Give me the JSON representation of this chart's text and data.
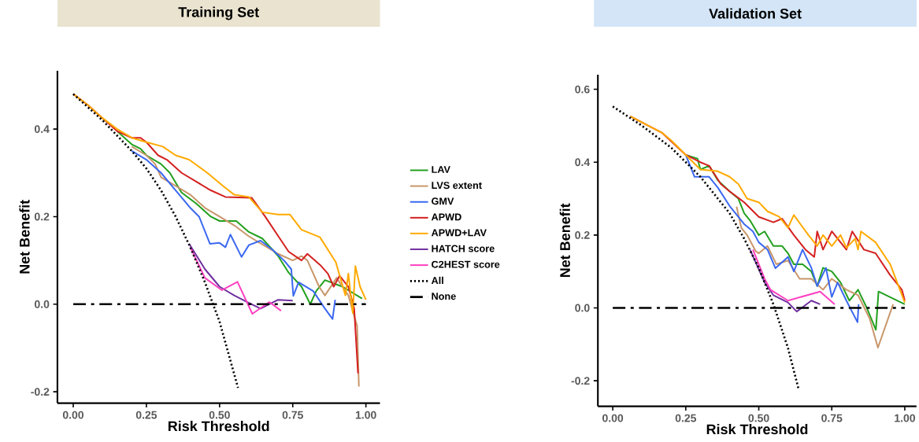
{
  "chart_data": [
    {
      "type": "line",
      "title": "Training Set",
      "xlabel": "Risk Threshold",
      "ylabel": "Net Benefit",
      "xlim": [
        -0.054,
        1.048
      ],
      "ylim": [
        -0.226,
        0.533
      ],
      "xticks": [
        {
          "value": 0,
          "label": "0.00"
        },
        {
          "value": 0.25,
          "label": "0.25"
        },
        {
          "value": 0.5,
          "label": "0.50"
        },
        {
          "value": 0.75,
          "label": "0.75"
        },
        {
          "value": 1,
          "label": "1.00"
        }
      ],
      "yticks": [
        {
          "value": -0.2,
          "label": "-0.2"
        },
        {
          "value": 0,
          "label": "0.0"
        },
        {
          "value": 0.2,
          "label": "0.2"
        },
        {
          "value": 0.4,
          "label": "0.4"
        }
      ],
      "legend": "right",
      "marker": "none",
      "series": [
        {
          "name": "LAV",
          "color": "#22a01e",
          "x": [
            0.15,
            0.2,
            0.23,
            0.25,
            0.3,
            0.33,
            0.37,
            0.42,
            0.47,
            0.5,
            0.557,
            0.6,
            0.646,
            0.7,
            0.736,
            0.78,
            0.81,
            0.83,
            0.86,
            0.9,
            0.92,
            0.987
          ],
          "values": [
            0.395,
            0.365,
            0.355,
            0.34,
            0.32,
            0.3,
            0.255,
            0.23,
            0.2,
            0.19,
            0.19,
            0.165,
            0.15,
            0.11,
            0.072,
            0.04,
            0.0,
            0.03,
            0.055,
            0.045,
            0.04,
            0.013
          ]
        },
        {
          "name": "LVS extent",
          "color": "#c8966a",
          "x": [
            0.2,
            0.25,
            0.28,
            0.3,
            0.35,
            0.4,
            0.45,
            0.5,
            0.55,
            0.6,
            0.65,
            0.7,
            0.75,
            0.78,
            0.8,
            0.84,
            0.86,
            0.9,
            0.94,
            0.97,
            0.976
          ],
          "values": [
            0.36,
            0.34,
            0.32,
            0.29,
            0.27,
            0.25,
            0.22,
            0.2,
            0.18,
            0.155,
            0.135,
            0.115,
            0.1,
            0.11,
            0.1,
            0.04,
            0.02,
            0.06,
            0.02,
            -0.05,
            -0.188
          ]
        },
        {
          "name": "GMV",
          "color": "#3b68f0",
          "x": [
            0.2,
            0.25,
            0.3,
            0.35,
            0.4,
            0.43,
            0.467,
            0.5,
            0.52,
            0.537,
            0.575,
            0.6,
            0.64,
            0.68,
            0.72,
            0.745,
            0.752,
            0.77,
            0.82,
            0.86,
            0.886,
            0.895
          ],
          "values": [
            0.35,
            0.33,
            0.3,
            0.26,
            0.22,
            0.2,
            0.138,
            0.14,
            0.13,
            0.159,
            0.108,
            0.135,
            0.145,
            0.125,
            0.1,
            0.08,
            0.019,
            0.05,
            0.03,
            -0.01,
            -0.034,
            0.01
          ]
        },
        {
          "name": "APWD",
          "color": "#d42020",
          "x": [
            0,
            0.05,
            0.1,
            0.15,
            0.2,
            0.23,
            0.25,
            0.29,
            0.32,
            0.37,
            0.42,
            0.47,
            0.52,
            0.61,
            0.655,
            0.7,
            0.736,
            0.78,
            0.8,
            0.843,
            0.87,
            0.89,
            0.91,
            0.94,
            0.96,
            0.973
          ],
          "values": [
            0.48,
            0.455,
            0.425,
            0.395,
            0.38,
            0.38,
            0.37,
            0.34,
            0.33,
            0.3,
            0.28,
            0.26,
            0.245,
            0.243,
            0.201,
            0.156,
            0.12,
            0.1,
            0.115,
            0.09,
            0.07,
            0.04,
            0.065,
            0.04,
            -0.01,
            -0.158
          ]
        },
        {
          "name": "APWD+LAV",
          "color": "#ffaa00",
          "x": [
            0,
            0.05,
            0.1,
            0.15,
            0.2,
            0.25,
            0.306,
            0.35,
            0.396,
            0.458,
            0.512,
            0.55,
            0.6,
            0.646,
            0.7,
            0.74,
            0.78,
            0.843,
            0.897,
            0.93,
            0.94,
            0.955,
            0.964,
            0.98,
            1.0
          ],
          "values": [
            0.48,
            0.455,
            0.425,
            0.4,
            0.38,
            0.37,
            0.36,
            0.34,
            0.33,
            0.3,
            0.27,
            0.25,
            0.245,
            0.21,
            0.205,
            0.205,
            0.17,
            0.153,
            0.096,
            0.02,
            0.07,
            -0.02,
            0.087,
            0.04,
            0.01
          ]
        },
        {
          "name": "HATCH score",
          "color": "#7030a0",
          "x": [
            0.396,
            0.45,
            0.5,
            0.55,
            0.6,
            0.64,
            0.7,
            0.75
          ],
          "values": [
            0.138,
            0.08,
            0.04,
            0.02,
            0.003,
            -0.01,
            0.01,
            0.008
          ]
        },
        {
          "name": "C2HEST score",
          "color": "#ff40c0",
          "x": [
            0.4,
            0.45,
            0.508,
            0.561,
            0.612,
            0.67,
            0.71
          ],
          "values": [
            0.13,
            0.06,
            0.032,
            0.051,
            -0.022,
            0.005,
            -0.015
          ]
        },
        {
          "name": "All",
          "color": "#000000",
          "line_style": "dotted",
          "x": [
            0,
            0.1,
            0.2,
            0.25,
            0.3,
            0.35,
            0.4,
            0.45,
            0.5,
            0.563
          ],
          "values": [
            0.48,
            0.42,
            0.35,
            0.31,
            0.26,
            0.2,
            0.13,
            0.05,
            -0.04,
            -0.191
          ]
        },
        {
          "name": "None",
          "color": "#000000",
          "line_style": "dashdot",
          "x": [
            0,
            1
          ],
          "values": [
            0,
            0
          ]
        }
      ]
    },
    {
      "type": "line",
      "title": "Validation Set",
      "xlabel": "Risk Threshold",
      "ylabel": "Net Benefit",
      "xlim": [
        -0.051,
        1.04
      ],
      "ylim": [
        -0.27,
        0.64
      ],
      "xticks": [
        {
          "value": 0,
          "label": "0.00"
        },
        {
          "value": 0.25,
          "label": "0.25"
        },
        {
          "value": 0.5,
          "label": "0.50"
        },
        {
          "value": 0.75,
          "label": "0.75"
        },
        {
          "value": 1,
          "label": "1.00"
        }
      ],
      "yticks": [
        {
          "value": -0.2,
          "label": "-0.2"
        },
        {
          "value": 0,
          "label": "0.0"
        },
        {
          "value": 0.2,
          "label": "0.2"
        },
        {
          "value": 0.4,
          "label": "0.4"
        },
        {
          "value": 0.6,
          "label": "0.6"
        }
      ],
      "marker": "none",
      "series": [
        {
          "color": "#22a01e",
          "x": [
            0.25,
            0.29,
            0.3,
            0.33,
            0.36,
            0.4,
            0.43,
            0.45,
            0.47,
            0.5,
            0.52,
            0.55,
            0.58,
            0.6,
            0.62,
            0.65,
            0.68,
            0.7,
            0.72,
            0.75,
            0.78,
            0.81,
            0.84,
            0.87,
            0.901,
            0.91,
            1.0
          ],
          "values": [
            0.42,
            0.41,
            0.38,
            0.39,
            0.35,
            0.32,
            0.3,
            0.26,
            0.24,
            0.2,
            0.21,
            0.17,
            0.17,
            0.15,
            0.12,
            0.12,
            0.1,
            0.06,
            0.11,
            0.1,
            0.07,
            0.02,
            0.05,
            0.0,
            -0.06,
            0.045,
            0.01
          ]
        },
        {
          "color": "#c8966a",
          "x": [
            0.424,
            0.44,
            0.46,
            0.49,
            0.5,
            0.53,
            0.56,
            0.6,
            0.64,
            0.68,
            0.72,
            0.75,
            0.8,
            0.84,
            0.88,
            0.908,
            0.96
          ],
          "values": [
            0.278,
            0.22,
            0.2,
            0.155,
            0.15,
            0.17,
            0.12,
            0.13,
            0.08,
            0.08,
            0.05,
            0.08,
            0.05,
            0.035,
            -0.03,
            -0.109,
            0.01
          ]
        },
        {
          "color": "#3b68f0",
          "x": [
            0.25,
            0.28,
            0.33,
            0.36,
            0.4,
            0.45,
            0.48,
            0.5,
            0.53,
            0.557,
            0.6,
            0.62,
            0.65,
            0.68,
            0.7,
            0.73,
            0.75,
            0.77,
            0.8,
            0.838,
            0.842
          ],
          "values": [
            0.42,
            0.36,
            0.36,
            0.33,
            0.28,
            0.23,
            0.21,
            0.18,
            0.16,
            0.109,
            0.14,
            0.1,
            0.16,
            0.11,
            0.06,
            0.11,
            0.03,
            0.07,
            0.02,
            -0.039,
            0.01
          ]
        },
        {
          "color": "#d42020",
          "x": [
            0.06,
            0.17,
            0.25,
            0.3,
            0.33,
            0.37,
            0.4,
            0.45,
            0.5,
            0.55,
            0.58,
            0.62,
            0.66,
            0.69,
            0.7,
            0.72,
            0.75,
            0.8,
            0.82,
            0.86,
            0.9,
            0.95,
            0.99,
            1.0
          ],
          "values": [
            0.526,
            0.48,
            0.42,
            0.4,
            0.39,
            0.34,
            0.32,
            0.29,
            0.25,
            0.235,
            0.245,
            0.2,
            0.16,
            0.14,
            0.21,
            0.16,
            0.21,
            0.16,
            0.21,
            0.16,
            0.15,
            0.09,
            0.05,
            0.02
          ]
        },
        {
          "color": "#ffaa00",
          "x": [
            0.06,
            0.17,
            0.2,
            0.25,
            0.3,
            0.36,
            0.4,
            0.43,
            0.46,
            0.5,
            0.53,
            0.57,
            0.6,
            0.62,
            0.67,
            0.7,
            0.72,
            0.75,
            0.78,
            0.8,
            0.83,
            0.84,
            0.85,
            0.9,
            0.95,
            1.0
          ],
          "values": [
            0.526,
            0.48,
            0.46,
            0.42,
            0.38,
            0.375,
            0.36,
            0.34,
            0.3,
            0.29,
            0.265,
            0.25,
            0.22,
            0.255,
            0.2,
            0.17,
            0.2,
            0.17,
            0.2,
            0.165,
            0.19,
            0.16,
            0.21,
            0.18,
            0.12,
            0.015
          ]
        },
        {
          "color": "#7030a0",
          "x": [
            0.47,
            0.52,
            0.55,
            0.6,
            0.63,
            0.68,
            0.71
          ],
          "values": [
            0.16,
            0.07,
            0.035,
            0.015,
            -0.01,
            0.02,
            0.01
          ]
        },
        {
          "color": "#ff40c0",
          "x": [
            0.48,
            0.52,
            0.54,
            0.6,
            0.71,
            0.76
          ],
          "values": [
            0.16,
            0.08,
            0.05,
            0.02,
            0.045,
            0.01
          ]
        },
        {
          "color": "#000000",
          "line_style": "dotted",
          "x": [
            0,
            0.1,
            0.2,
            0.3,
            0.4,
            0.45,
            0.5,
            0.55,
            0.6,
            0.636
          ],
          "values": [
            0.553,
            0.5,
            0.44,
            0.36,
            0.26,
            0.19,
            0.11,
            0.01,
            -0.11,
            -0.222
          ]
        },
        {
          "color": "#000000",
          "line_style": "dashdot",
          "x": [
            0,
            1
          ],
          "values": [
            0,
            0
          ]
        }
      ]
    }
  ]
}
